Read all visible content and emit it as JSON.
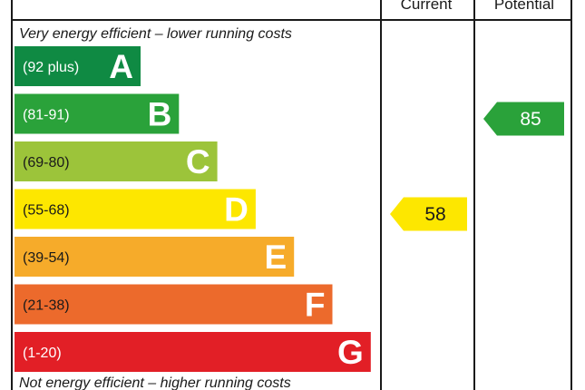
{
  "chart_data": {
    "type": "bar",
    "header": {
      "current": "Current",
      "potential": "Potential"
    },
    "top_text": "Very energy efficient – lower running costs",
    "bottom_text": "Not energy efficient – higher running costs",
    "bands": [
      {
        "letter": "A",
        "range": "(92 plus)",
        "min": 92,
        "max": 100,
        "color": "#0f8a43",
        "text_color": "#ffffff"
      },
      {
        "letter": "B",
        "range": "(81-91)",
        "min": 81,
        "max": 91,
        "color": "#2aa23a",
        "text_color": "#ffffff"
      },
      {
        "letter": "C",
        "range": "(69-80)",
        "min": 69,
        "max": 80,
        "color": "#9cc43a",
        "text_color": "#1a1a1a"
      },
      {
        "letter": "D",
        "range": "(55-68)",
        "min": 55,
        "max": 68,
        "color": "#fde700",
        "text_color": "#1a1a1a"
      },
      {
        "letter": "E",
        "range": "(39-54)",
        "min": 39,
        "max": 54,
        "color": "#f6ab2a",
        "text_color": "#1a1a1a"
      },
      {
        "letter": "F",
        "range": "(21-38)",
        "min": 21,
        "max": 38,
        "color": "#ec6a2c",
        "text_color": "#1a1a1a"
      },
      {
        "letter": "G",
        "range": "(1-20)",
        "min": 1,
        "max": 20,
        "color": "#e21f26",
        "text_color": "#ffffff"
      }
    ],
    "current": {
      "value": 58,
      "band": "D",
      "color": "#fde700",
      "text_color": "#1a1a1a"
    },
    "potential": {
      "value": 85,
      "band": "B",
      "color": "#2aa23a",
      "text_color": "#ffffff"
    }
  }
}
